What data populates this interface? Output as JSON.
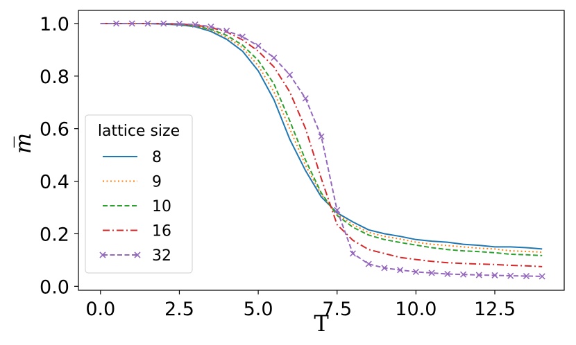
{
  "chart_data": {
    "type": "line",
    "title": "",
    "xlabel": "T",
    "ylabel": "m̅",
    "xlim": [
      -0.7,
      14.7
    ],
    "ylim": [
      -0.015,
      1.05
    ],
    "xticks": [
      0.0,
      2.5,
      5.0,
      7.5,
      10.0,
      12.5
    ],
    "xtick_labels": [
      "0.0",
      "2.5",
      "5.0",
      "7.5",
      "10.0",
      "12.5"
    ],
    "yticks": [
      0.0,
      0.2,
      0.4,
      0.6,
      0.8,
      1.0
    ],
    "ytick_labels": [
      "0.0",
      "0.2",
      "0.4",
      "0.6",
      "0.8",
      "1.0"
    ],
    "grid": false,
    "legend": {
      "title": "lattice size",
      "location": "center-left"
    },
    "x": [
      0.0,
      0.5,
      1.0,
      1.5,
      2.0,
      2.5,
      3.0,
      3.5,
      4.0,
      4.5,
      5.0,
      5.5,
      6.0,
      6.5,
      7.0,
      7.5,
      8.0,
      8.5,
      9.0,
      9.5,
      10.0,
      10.5,
      11.0,
      11.5,
      12.0,
      12.5,
      13.0,
      13.5,
      14.0
    ],
    "series": [
      {
        "name": "8",
        "color": "#1f77b4",
        "style": "solid",
        "marker": "none",
        "values": [
          1.0,
          1.0,
          1.0,
          1.0,
          0.998,
          0.995,
          0.988,
          0.97,
          0.94,
          0.895,
          0.82,
          0.71,
          0.56,
          0.44,
          0.34,
          0.28,
          0.245,
          0.215,
          0.2,
          0.19,
          0.178,
          0.172,
          0.168,
          0.16,
          0.156,
          0.15,
          0.15,
          0.147,
          0.142
        ]
      },
      {
        "name": "9",
        "color": "#ff7f0e",
        "style": "dotted",
        "marker": "none",
        "values": [
          1.0,
          1.0,
          1.0,
          1.0,
          0.999,
          0.996,
          0.99,
          0.975,
          0.948,
          0.908,
          0.84,
          0.74,
          0.6,
          0.46,
          0.35,
          0.275,
          0.235,
          0.205,
          0.19,
          0.18,
          0.168,
          0.16,
          0.155,
          0.15,
          0.145,
          0.142,
          0.135,
          0.133,
          0.13
        ]
      },
      {
        "name": "10",
        "color": "#2ca02c",
        "style": "dashed",
        "marker": "none",
        "values": [
          1.0,
          1.0,
          1.0,
          1.0,
          0.999,
          0.997,
          0.991,
          0.978,
          0.955,
          0.918,
          0.86,
          0.77,
          0.63,
          0.48,
          0.355,
          0.27,
          0.225,
          0.195,
          0.178,
          0.167,
          0.157,
          0.147,
          0.14,
          0.135,
          0.132,
          0.128,
          0.122,
          0.12,
          0.117
        ]
      },
      {
        "name": "16",
        "color": "#d62728",
        "style": "dashdot",
        "marker": "none",
        "values": [
          1.0,
          1.0,
          1.0,
          1.0,
          1.0,
          0.998,
          0.994,
          0.985,
          0.968,
          0.938,
          0.895,
          0.835,
          0.74,
          0.6,
          0.41,
          0.235,
          0.175,
          0.14,
          0.125,
          0.11,
          0.102,
          0.095,
          0.09,
          0.087,
          0.085,
          0.083,
          0.08,
          0.078,
          0.075
        ]
      },
      {
        "name": "32",
        "color": "#9467bd",
        "style": "dashed",
        "marker": "x",
        "values": [
          1.0,
          1.0,
          1.0,
          1.0,
          1.0,
          0.999,
          0.996,
          0.988,
          0.972,
          0.95,
          0.915,
          0.87,
          0.805,
          0.715,
          0.57,
          0.29,
          0.125,
          0.085,
          0.07,
          0.062,
          0.055,
          0.051,
          0.047,
          0.045,
          0.043,
          0.042,
          0.04,
          0.039,
          0.038
        ]
      }
    ]
  }
}
